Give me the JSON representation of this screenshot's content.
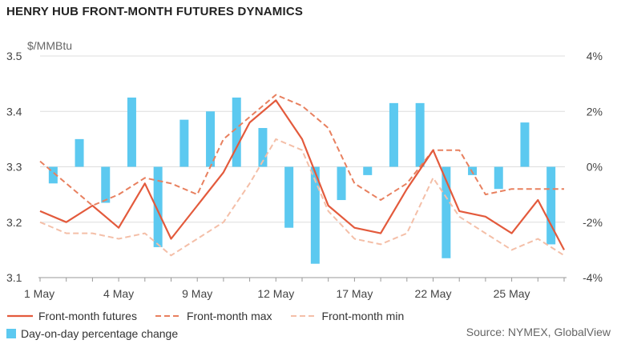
{
  "title": "HENRY HUB FRONT-MONTH FUTURES DYNAMICS",
  "source": "Source: NYMEX, GlobalView",
  "colors": {
    "futures": "#e35a3c",
    "max": "#e8805f",
    "min": "#f4bfa8",
    "bars": "#5cc9f0",
    "grid": "#dddddd"
  },
  "chart_data": {
    "type": "line",
    "ylabel_left": "$/MMBtu",
    "y_left_lim": [
      3.1,
      3.5
    ],
    "y_left_ticks": [
      "3.1",
      "3.2",
      "3.3",
      "3.4",
      "3.5"
    ],
    "y_right_lim": [
      -4,
      4
    ],
    "y_right_ticks": [
      "-4%",
      "-2%",
      "0%",
      "2%",
      "4%"
    ],
    "x_tick_labels": [
      {
        "index": 0,
        "label": "1 May"
      },
      {
        "index": 3,
        "label": "4 May"
      },
      {
        "index": 6,
        "label": "9 May"
      },
      {
        "index": 9,
        "label": "12 May"
      },
      {
        "index": 12,
        "label": "17 May"
      },
      {
        "index": 15,
        "label": "22 May"
      },
      {
        "index": 18,
        "label": "25 May"
      }
    ],
    "series": [
      {
        "name": "Front-month futures",
        "axis": "left",
        "style": "solid",
        "values": [
          3.22,
          3.2,
          3.23,
          3.19,
          3.27,
          3.17,
          3.23,
          3.29,
          3.38,
          3.42,
          3.35,
          3.23,
          3.19,
          3.18,
          3.26,
          3.33,
          3.22,
          3.21,
          3.18,
          3.24,
          3.15
        ]
      },
      {
        "name": "Front-month max",
        "axis": "left",
        "style": "dashed",
        "values": [
          3.31,
          3.27,
          3.23,
          3.25,
          3.28,
          3.27,
          3.25,
          3.35,
          3.39,
          3.43,
          3.41,
          3.37,
          3.27,
          3.24,
          3.27,
          3.33,
          3.33,
          3.25,
          3.26,
          3.26,
          3.26
        ]
      },
      {
        "name": "Front-month min",
        "axis": "left",
        "style": "dashed-light",
        "values": [
          3.2,
          3.18,
          3.18,
          3.17,
          3.18,
          3.14,
          3.17,
          3.2,
          3.27,
          3.35,
          3.33,
          3.22,
          3.17,
          3.16,
          3.18,
          3.28,
          3.21,
          3.18,
          3.15,
          3.17,
          3.14
        ]
      },
      {
        "name": "Day-on-day percentage change",
        "axis": "right",
        "style": "bar",
        "values": [
          -0.6,
          1.0,
          -1.3,
          2.5,
          -2.9,
          1.7,
          2.0,
          2.5,
          1.4,
          -2.2,
          -3.5,
          -1.2,
          -0.3,
          2.3,
          2.3,
          -3.3,
          -0.3,
          -0.8,
          1.6,
          -2.8
        ]
      }
    ]
  }
}
